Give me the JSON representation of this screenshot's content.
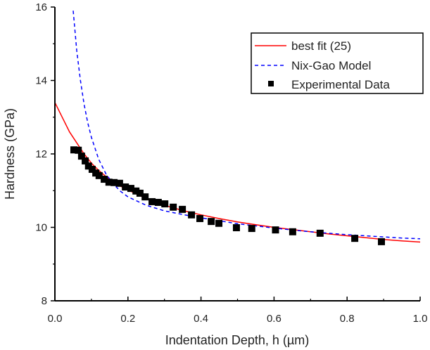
{
  "chart_data": {
    "type": "line",
    "title": "",
    "xlabel": "Indentation Depth, h (µm)",
    "ylabel": "Hardness (GPa)",
    "xlim": [
      0.0,
      1.0
    ],
    "ylim": [
      8,
      16
    ],
    "x_ticks": [
      "0.0",
      "0.2",
      "0.4",
      "0.6",
      "0.8",
      "1.0"
    ],
    "y_ticks": [
      "8",
      "10",
      "12",
      "14",
      "16"
    ],
    "grid": false,
    "legend_position": "upper right",
    "series": [
      {
        "name": "best fit (25)",
        "style": "solid-line",
        "color": "#ff0000",
        "x": [
          0.0,
          0.02,
          0.04,
          0.06,
          0.08,
          0.1,
          0.12,
          0.15,
          0.18,
          0.2,
          0.25,
          0.3,
          0.35,
          0.4,
          0.45,
          0.5,
          0.55,
          0.6,
          0.65,
          0.7,
          0.75,
          0.8,
          0.85,
          0.9,
          0.95,
          1.0
        ],
        "y": [
          13.4,
          13.0,
          12.6,
          12.3,
          12.0,
          11.75,
          11.55,
          11.3,
          11.12,
          11.02,
          10.78,
          10.6,
          10.46,
          10.34,
          10.24,
          10.15,
          10.07,
          10.0,
          9.94,
          9.88,
          9.82,
          9.77,
          9.72,
          9.67,
          9.63,
          9.6
        ]
      },
      {
        "name": "Nix-Gao Model",
        "style": "dashed-line",
        "color": "#0000ff",
        "x": [
          0.05,
          0.06,
          0.07,
          0.08,
          0.09,
          0.1,
          0.12,
          0.14,
          0.16,
          0.18,
          0.2,
          0.25,
          0.3,
          0.35,
          0.4,
          0.45,
          0.5,
          0.55,
          0.6,
          0.65,
          0.7,
          0.75,
          0.8,
          0.85,
          0.9,
          0.95,
          1.0
        ],
        "y": [
          15.9,
          14.8,
          14.0,
          13.35,
          12.85,
          12.45,
          11.85,
          11.45,
          11.18,
          10.98,
          10.83,
          10.6,
          10.45,
          10.35,
          10.26,
          10.18,
          10.1,
          10.04,
          9.98,
          9.93,
          9.88,
          9.84,
          9.8,
          9.77,
          9.74,
          9.71,
          9.69
        ]
      },
      {
        "name": "Experimental Data",
        "style": "square-markers",
        "color": "#000000",
        "x": [
          0.052,
          0.064,
          0.073,
          0.083,
          0.092,
          0.102,
          0.112,
          0.121,
          0.135,
          0.148,
          0.162,
          0.177,
          0.193,
          0.208,
          0.222,
          0.233,
          0.247,
          0.266,
          0.283,
          0.301,
          0.324,
          0.349,
          0.374,
          0.397,
          0.428,
          0.449,
          0.497,
          0.539,
          0.604,
          0.651,
          0.726,
          0.821,
          0.894
        ],
        "y": [
          12.11,
          12.1,
          11.94,
          11.81,
          11.67,
          11.58,
          11.48,
          11.41,
          11.31,
          11.23,
          11.22,
          11.2,
          11.1,
          11.06,
          10.99,
          10.93,
          10.83,
          10.7,
          10.68,
          10.64,
          10.55,
          10.49,
          10.34,
          10.24,
          10.16,
          10.11,
          9.99,
          9.97,
          9.93,
          9.88,
          9.84,
          9.7,
          9.61
        ]
      }
    ]
  },
  "legend": {
    "items": [
      {
        "label": "best fit (25)"
      },
      {
        "label": "Nix-Gao Model"
      },
      {
        "label": "Experimental Data"
      }
    ]
  },
  "axes": {
    "xlabel": "Indentation Depth, h (µm)",
    "ylabel": "Hardness (GPa)",
    "axis_color": "#000000",
    "text_color": "#222222"
  }
}
